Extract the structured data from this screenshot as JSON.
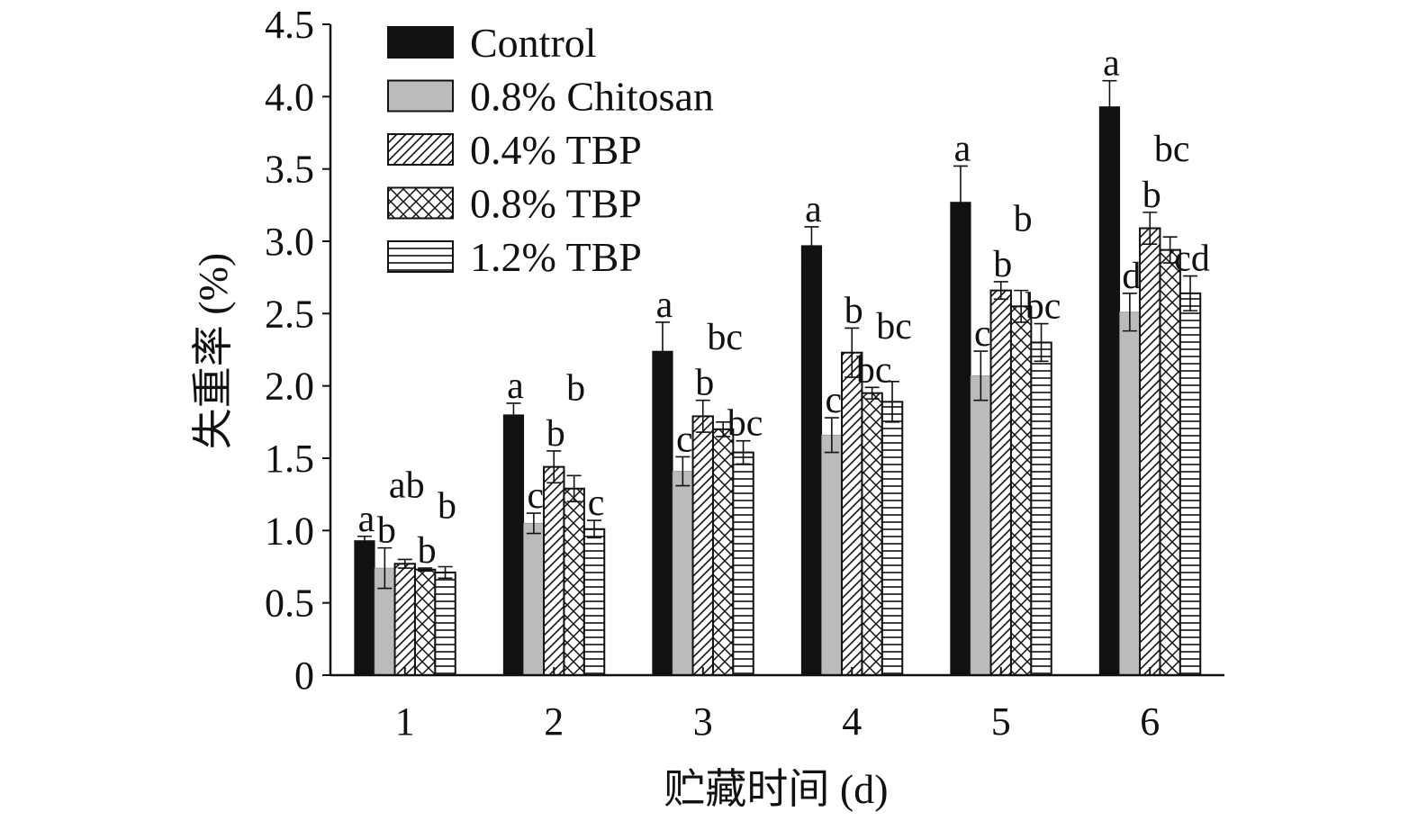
{
  "chart_data": {
    "type": "bar",
    "title": "",
    "xlabel": "贮藏时间 (d)",
    "ylabel": "失重率 (%)",
    "ylim": [
      0,
      4.5
    ],
    "yticks": [
      "0",
      "0.5",
      "1.0",
      "1.5",
      "2.0",
      "2.5",
      "3.0",
      "3.5",
      "4.0",
      "4.5"
    ],
    "categories": [
      "1",
      "2",
      "3",
      "4",
      "5",
      "6"
    ],
    "legend_position": "top-left",
    "grid": false,
    "series": [
      {
        "name": "Control",
        "pattern": "solid-black",
        "color": "#111111",
        "values": [
          0.93,
          1.8,
          2.24,
          2.97,
          3.27,
          3.93
        ],
        "errors": [
          0.03,
          0.08,
          0.2,
          0.13,
          0.25,
          0.18
        ],
        "labels": [
          "a",
          "a",
          "a",
          "a",
          "a",
          "a"
        ]
      },
      {
        "name": "0.8% Chitosan",
        "pattern": "solid-gray",
        "color": "#bbbbbb",
        "values": [
          0.74,
          1.05,
          1.41,
          1.66,
          2.07,
          2.51
        ],
        "errors": [
          0.14,
          0.07,
          0.1,
          0.12,
          0.17,
          0.13
        ],
        "labels": [
          "b",
          "c",
          "c",
          "c",
          "c",
          "d"
        ]
      },
      {
        "name": "0.4% TBP",
        "pattern": "diagonal-hatch",
        "color": "#111111",
        "values": [
          0.77,
          1.44,
          1.79,
          2.23,
          2.66,
          3.09
        ],
        "errors": [
          0.03,
          0.11,
          0.11,
          0.17,
          0.06,
          0.11
        ],
        "labels": [
          "ab",
          "b",
          "b",
          "b",
          "b",
          "b"
        ]
      },
      {
        "name": "0.8% TBP",
        "pattern": "cross-hatch",
        "color": "#111111",
        "values": [
          0.73,
          1.29,
          1.7,
          1.95,
          2.55,
          2.94
        ],
        "errors": [
          0.01,
          0.09,
          0.05,
          0.04,
          0.11,
          0.09
        ],
        "labels": [
          "b",
          "b",
          "bc",
          "bc",
          "b",
          "bc"
        ]
      },
      {
        "name": "1.2% TBP",
        "pattern": "horizontal-lines",
        "color": "#111111",
        "values": [
          0.71,
          1.01,
          1.54,
          1.89,
          2.3,
          2.64
        ],
        "errors": [
          0.04,
          0.06,
          0.08,
          0.14,
          0.13,
          0.12
        ],
        "labels": [
          "b",
          "c",
          "bc",
          "bc",
          "bc",
          "cd"
        ]
      }
    ]
  }
}
